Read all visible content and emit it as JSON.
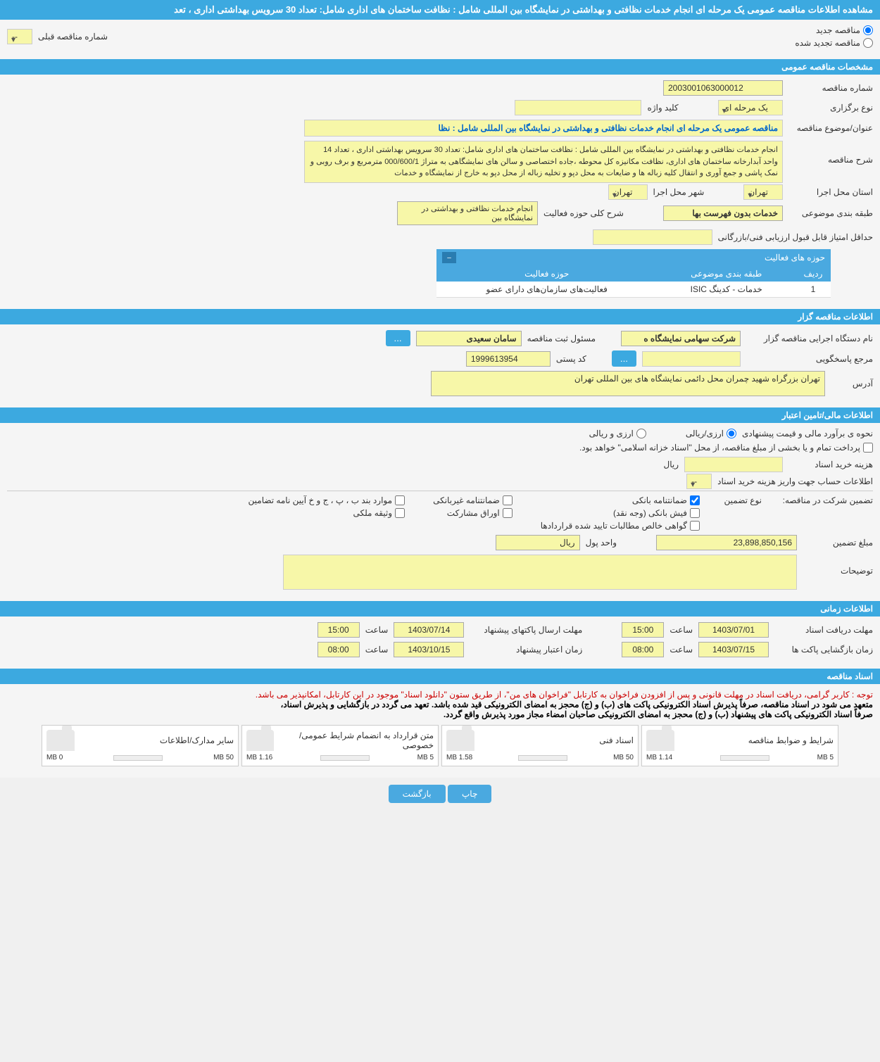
{
  "colors": {
    "header_bg": "#3ca9e0",
    "header_text": "#ffffff",
    "input_bg": "#f7f7a8",
    "page_bg": "#f5f5f5",
    "link_blue": "#0066cc",
    "notice_red": "#cc0000",
    "progress_green": "#5cb85c"
  },
  "header": {
    "title": "مشاهده اطلاعات مناقصه عمومی یک مرحله ای انجام خدمات نظافتی و بهداشتی در نمایشگاه بین المللی شامل : نظافت ساختمان های اداری شامل: تعداد 30 سرویس بهداشتی اداری ، تعد"
  },
  "tender_type": {
    "new_label": "مناقصه جدید",
    "renewed_label": "مناقصه تجدید شده",
    "selected": "new"
  },
  "prev_number": {
    "label": "شماره مناقصه قبلی",
    "value": "--"
  },
  "sections": {
    "general": "مشخصات مناقصه عمومی",
    "holder": "اطلاعات مناقصه گزار",
    "financial": "اطلاعات مالی/تامین اعتبار",
    "time": "اطلاعات زمانی",
    "docs": "اسناد مناقصه"
  },
  "general": {
    "number_label": "شماره مناقصه",
    "number": "2003001063000012",
    "type_label": "نوع برگزاری",
    "type": "یک مرحله ای",
    "keyword_label": "کلید واژه",
    "keyword": "",
    "subject_label": "عنوان/موضوع مناقصه",
    "subject": "مناقصه عمومی یک مرحله ای انجام خدمات نظافتی و بهداشتی در نمایشگاه بین المللی شامل : نظا",
    "desc_label": "شرح مناقصه",
    "desc": "انجام خدمات نظافتی و بهداشتی در نمایشگاه بین المللی شامل : نظافت ساختمان های اداری شامل: تعداد 30 سرویس بهداشتی  اداری ،  تعداد 14 واحد آبدارخانه ساختمان های اداری، نظافت  مکانیزه کل محوطه ،جاده اختصاصی و سالن های نمایشگاهی به متراژ 000/600/1 مترمربع و برف روبی و نمک پاشی و جمع آوری و انتقال کلیه زباله ها و ضایعات به محل دپو و تخلیه زباله از محل دپو به خارج از نمایشگاه و خدمات",
    "province_label": "استان محل اجرا",
    "province": "تهران",
    "city_label": "شهر محل اجرا",
    "city": "تهران",
    "subject_class_label": "طبقه بندی موضوعی",
    "subject_class": "خدمات بدون فهرست بها",
    "overall_activity_label": "شرح کلی حوزه فعالیت",
    "overall_activity": "انجام خدمات نظافتی و بهداشتی در نمایشگاه بین",
    "min_score_label": "حداقل امتیاز قابل قبول ارزیابی فنی/بازرگانی",
    "min_score": ""
  },
  "activity_table": {
    "title": "حوزه های فعالیت",
    "cols": {
      "row": "ردیف",
      "class": "طبقه بندی موضوعی",
      "field": "حوزه فعالیت"
    },
    "rows": [
      {
        "row": "1",
        "class": "خدمات - كدينگ ISIC",
        "field": "فعالیت‌های سازمان‌های دارای عضو"
      }
    ]
  },
  "holder": {
    "exec_label": "نام دستگاه اجرایی مناقصه گزار",
    "exec": "شرکت سهامی نمایشگاه ه",
    "registrar_label": "مسئول ثبت مناقصه",
    "registrar": "سامان سعیدی",
    "more": "...",
    "ref_label": "مرجع پاسخگویی",
    "ref": "",
    "postal_label": "کد پستی",
    "postal": "1999613954",
    "address_label": "آدرس",
    "address": "تهران بزرگراه شهید چمران محل دائمی نمایشگاه های بین المللی تهران"
  },
  "financial": {
    "method_label": "نحوه ی برآورد مالی و قیمت پیشنهادی",
    "opt_rial": "ارزی/ریالی",
    "opt_currency": "ارزی و ریالی",
    "treasury_note": "پرداخت تمام و یا بخشی از مبلغ مناقصه، از محل \"اسناد خزانه اسلامی\" خواهد بود.",
    "doc_cost_label": "هزینه خرید اسناد",
    "doc_cost": "",
    "doc_cost_unit": "ریال",
    "account_label": "اطلاعات حساب جهت واریز هزینه خرید اسناد",
    "account": "--",
    "guarantee_header": "تضمین شرکت در مناقصه:",
    "guarantee_type_label": "نوع تضمین",
    "guarantee_opts": {
      "bank": "ضمانتنامه بانکی",
      "nonbank": "ضمانتنامه غیربانکی",
      "regs": "موارد بند ب ، پ ، ج و خ آیین نامه تضامین",
      "fish": "فیش بانکی (وجه نقد)",
      "shares": "اوراق مشارکت",
      "property": "وثیقه ملکی",
      "netclaims": "گواهی خالص مطالبات تایید شده قراردادها"
    },
    "amount_label": "مبلغ تضمین",
    "amount": "23,898,850,156",
    "unit_label": "واحد پول",
    "unit": "ریال",
    "notes_label": "توضیحات",
    "notes": ""
  },
  "time": {
    "receive_label": "مهلت دریافت اسناد",
    "receive_date": "1403/07/01",
    "send_label": "مهلت ارسال پاکتهای پیشنهاد",
    "send_date": "1403/07/14",
    "open_label": "زمان بازگشایی پاکت ها",
    "open_date": "1403/07/15",
    "validity_label": "زمان اعتبار پیشنهاد",
    "validity_date": "1403/10/15",
    "hour_label": "ساعت",
    "receive_time": "15:00",
    "send_time": "15:00",
    "open_time": "08:00",
    "validity_time": "08:00"
  },
  "docs": {
    "notice_red": "توجه : کاربر گرامی، دریافت اسناد در مهلت قانونی و پس از افزودن فراخوان به کارتابل \"فراخوان های من\"، از طریق ستون \"دانلود اسناد\" موجود در این کارتابل، امکانپذیر می باشد.",
    "notice_black1": "متعهد می شود در اسناد مناقصه، صرفاً پذیرش اسناد الکترونیکی پاکت های (ب) و (ج) محجز به امضای الکترونیکی قید شده باشد. تعهد می گردد در بازگشایی و پذیرش اسناد،",
    "notice_black2": "صرفاً اسناد الکترونیکی پاکت های پیشنهاد (ب) و (ج) محجز به امضای الکترونیکی صاحبان امضاء مجاز مورد پذیرش واقع گردد.",
    "items": [
      {
        "title": "شرایط و ضوابط مناقصه",
        "used": "1.14 MB",
        "limit": "5 MB",
        "pct": 23
      },
      {
        "title": "اسناد فنی",
        "used": "1.58 MB",
        "limit": "50 MB",
        "pct": 3
      },
      {
        "title": "متن قرارداد به انضمام شرایط عمومی/خصوصی",
        "used": "1.16 MB",
        "limit": "5 MB",
        "pct": 23
      },
      {
        "title": "سایر مدارک/اطلاعات",
        "used": "0 MB",
        "limit": "50 MB",
        "pct": 0
      }
    ]
  },
  "footer": {
    "print": "چاپ",
    "back": "بازگشت"
  }
}
